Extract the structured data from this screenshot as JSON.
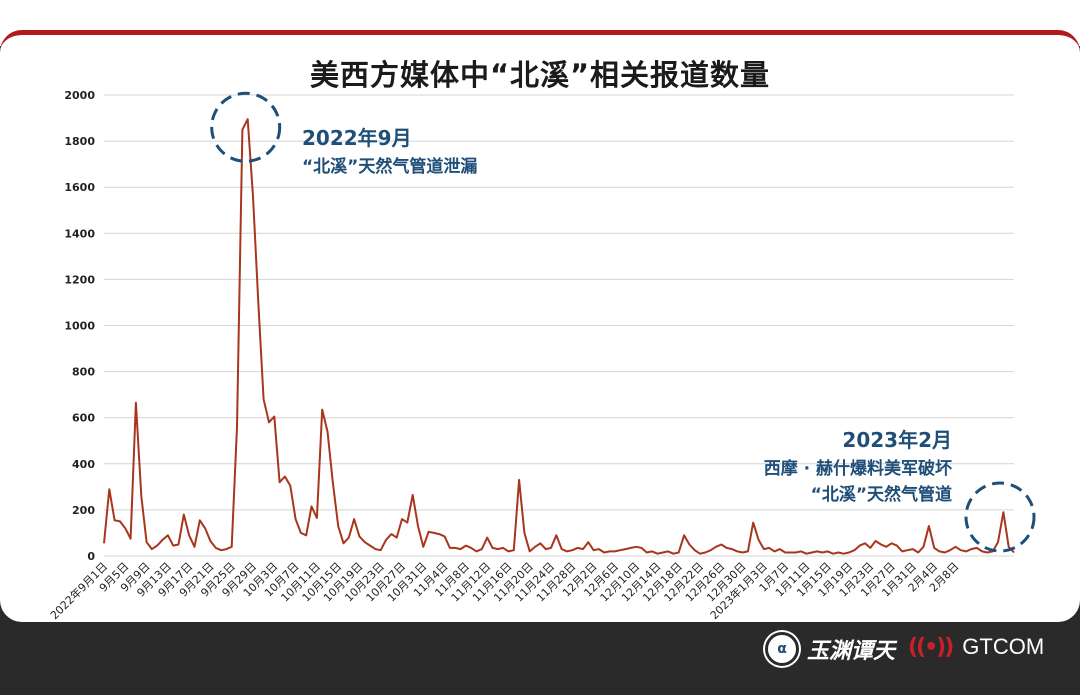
{
  "title": "美西方媒体中“北溪”相关报道数量",
  "colors": {
    "line": "#a8361e",
    "accent": "#b3191c",
    "annotation": "#1f4e79",
    "grid": "#d4d4d4"
  },
  "annotations": {
    "peak": {
      "line1": "2022年9月",
      "line2": "“北溪”天然气管道泄漏"
    },
    "recent": {
      "line1": "2023年2月",
      "line2": "西摩 · 赫什爆料美军破坏",
      "line3": "“北溪”天然气管道"
    }
  },
  "logos": {
    "left_name": "玉渊谭天",
    "left_mark": "icon",
    "right_name": "GTCOM",
    "right_mark": "((•))"
  },
  "chart_data": {
    "type": "line",
    "title": "美西方媒体中“北溪”相关报道数量",
    "xlabel": "",
    "ylabel": "",
    "ylim": [
      0,
      2000
    ],
    "yticks": [
      0,
      200,
      400,
      600,
      800,
      1000,
      1200,
      1400,
      1600,
      1800,
      2000
    ],
    "grid": true,
    "legend": "none",
    "tick_labels": [
      "2022年9月1日",
      "9月5日",
      "9月9日",
      "9月13日",
      "9月17日",
      "9月21日",
      "9月25日",
      "9月29日",
      "10月3日",
      "10月7日",
      "10月11日",
      "10月15日",
      "10月19日",
      "10月23日",
      "10月27日",
      "10月31日",
      "11月4日",
      "11月8日",
      "11月12日",
      "11月16日",
      "11月20日",
      "11月24日",
      "11月28日",
      "12月2日",
      "12月6日",
      "12月10日",
      "12月14日",
      "12月18日",
      "12月22日",
      "12月26日",
      "12月30日",
      "2023年1月3日",
      "1月7日",
      "1月11日",
      "1月15日",
      "1月19日",
      "1月23日",
      "1月27日",
      "1月31日",
      "2月4日",
      "2月8日"
    ],
    "values": [
      55,
      290,
      155,
      150,
      120,
      75,
      665,
      260,
      60,
      30,
      45,
      70,
      90,
      45,
      50,
      180,
      90,
      40,
      155,
      120,
      65,
      35,
      25,
      30,
      40,
      560,
      1850,
      1895,
      1560,
      1100,
      680,
      580,
      605,
      320,
      345,
      305,
      160,
      100,
      90,
      215,
      165,
      635,
      540,
      320,
      130,
      55,
      80,
      160,
      85,
      60,
      45,
      30,
      25,
      70,
      95,
      80,
      160,
      145,
      265,
      130,
      40,
      105,
      100,
      95,
      85,
      35,
      35,
      30,
      45,
      35,
      20,
      30,
      80,
      35,
      30,
      35,
      20,
      25,
      330,
      100,
      20,
      40,
      55,
      30,
      35,
      90,
      30,
      20,
      25,
      35,
      30,
      60,
      25,
      30,
      15,
      20,
      20,
      25,
      30,
      35,
      40,
      35,
      15,
      20,
      10,
      15,
      20,
      10,
      15,
      90,
      50,
      25,
      10,
      15,
      25,
      40,
      50,
      35,
      30,
      20,
      15,
      20,
      145,
      70,
      30,
      35,
      20,
      30,
      15,
      15,
      15,
      20,
      10,
      15,
      20,
      15,
      20,
      10,
      15,
      10,
      15,
      25,
      45,
      55,
      35,
      65,
      50,
      40,
      55,
      45,
      20,
      25,
      30,
      15,
      40,
      130,
      35,
      20,
      15,
      25,
      40,
      25,
      20,
      30,
      35,
      20,
      15,
      20,
      60,
      190,
      40,
      15
    ]
  }
}
